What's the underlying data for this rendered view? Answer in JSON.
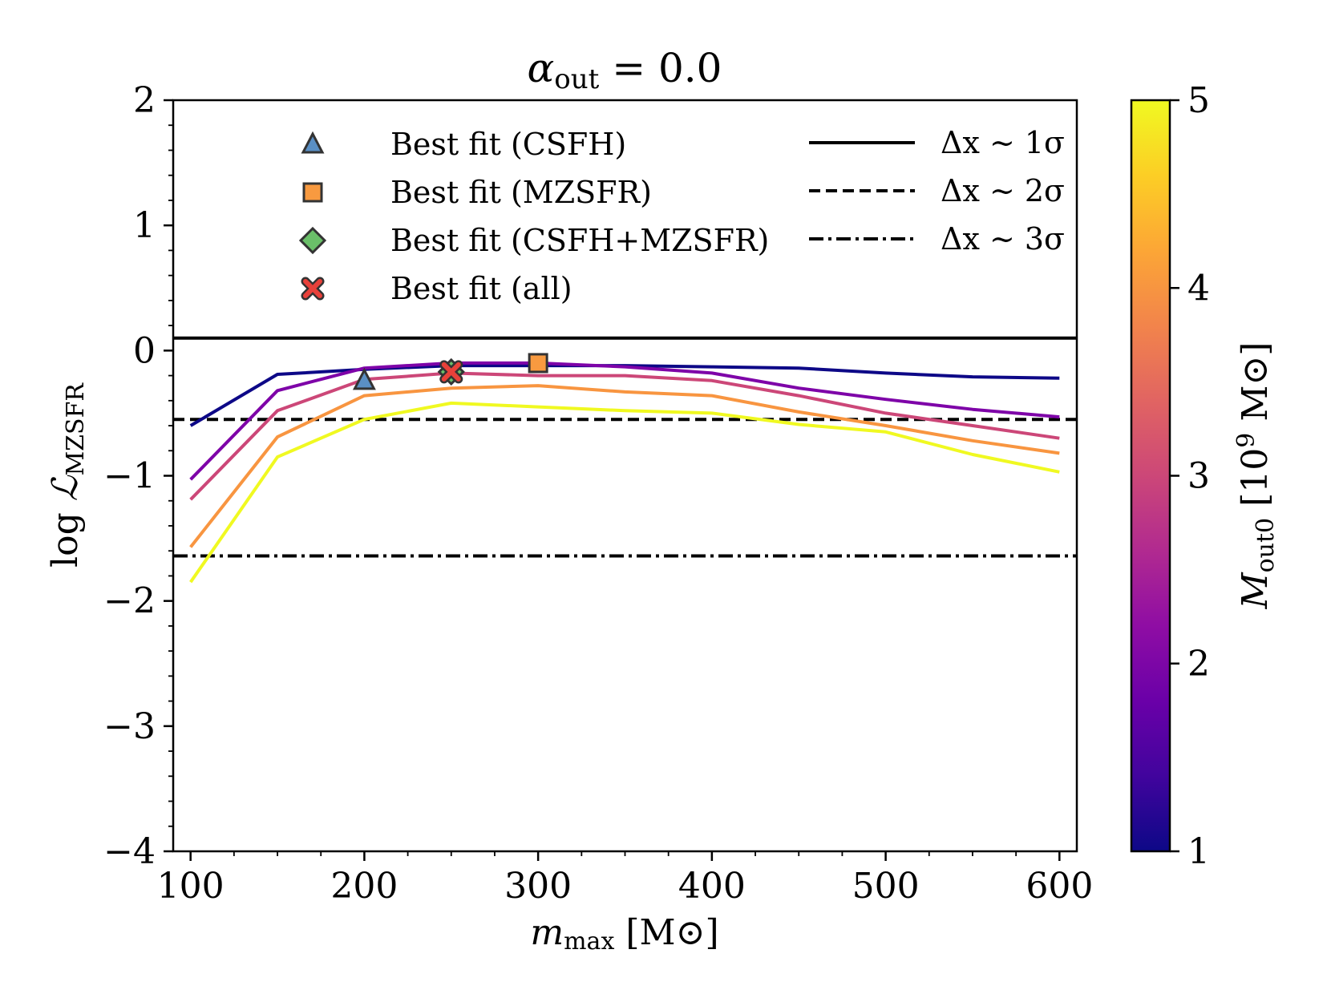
{
  "chart_data": {
    "type": "line",
    "title": "α_out = 0.0",
    "title_parts": {
      "symbol": "α",
      "sub": "out",
      "rest": " = 0.0"
    },
    "xlabel": "m_max [M⊙]",
    "xlabel_parts": {
      "symbol": "m",
      "sub": "max",
      "unit": " [M⊙]"
    },
    "ylabel": "log ℒ_MZSFR",
    "ylabel_parts": {
      "prefix": "log ",
      "symbol": "ℒ",
      "sub": "MZSFR"
    },
    "xlim": [
      90,
      610
    ],
    "ylim": [
      -4,
      2
    ],
    "xticks": [
      100,
      200,
      300,
      400,
      500,
      600
    ],
    "xtick_labels": [
      "100",
      "200",
      "300",
      "400",
      "500",
      "600"
    ],
    "yticks": [
      -4,
      -3,
      -2,
      -1,
      0,
      1,
      2
    ],
    "ytick_labels": [
      "−4",
      "−3",
      "−2",
      "−1",
      "0",
      "1",
      "2"
    ],
    "x": [
      100,
      150,
      200,
      250,
      300,
      350,
      400,
      450,
      500,
      550,
      600
    ],
    "series": [
      {
        "name": "M_out0 = 1",
        "color": "#0d0887",
        "values": [
          -0.6,
          -0.19,
          -0.15,
          -0.12,
          -0.12,
          -0.12,
          -0.13,
          -0.14,
          -0.18,
          -0.21,
          -0.22
        ]
      },
      {
        "name": "M_out0 = 2",
        "color": "#7e03a8",
        "values": [
          -1.03,
          -0.32,
          -0.14,
          -0.1,
          -0.1,
          -0.13,
          -0.18,
          -0.3,
          -0.39,
          -0.47,
          -0.53
        ]
      },
      {
        "name": "M_out0 = 3",
        "color": "#cc4778",
        "values": [
          -1.19,
          -0.48,
          -0.23,
          -0.18,
          -0.2,
          -0.2,
          -0.24,
          -0.36,
          -0.5,
          -0.6,
          -0.7
        ]
      },
      {
        "name": "M_out0 = 4",
        "color": "#f89540",
        "values": [
          -1.57,
          -0.69,
          -0.36,
          -0.3,
          -0.28,
          -0.33,
          -0.36,
          -0.49,
          -0.6,
          -0.72,
          -0.82
        ]
      },
      {
        "name": "M_out0 = 5",
        "color": "#f0f921",
        "values": [
          -1.85,
          -0.85,
          -0.55,
          -0.42,
          -0.45,
          -0.48,
          -0.5,
          -0.59,
          -0.65,
          -0.83,
          -0.97
        ]
      }
    ],
    "hlines": [
      {
        "name": "Δx ~ 1σ",
        "y": 0.1,
        "style": "solid"
      },
      {
        "name": "Δx ~ 2σ",
        "y": -0.55,
        "style": "dashed"
      },
      {
        "name": "Δx ~ 3σ",
        "y": -1.64,
        "style": "dashdot"
      }
    ],
    "markers": [
      {
        "name": "Best fit (CSFH)",
        "shape": "triangle",
        "x": 200,
        "y": -0.24,
        "color": "#5a8fc4"
      },
      {
        "name": "Best fit (MZSFR)",
        "shape": "square",
        "x": 300,
        "y": -0.1,
        "color": "#f89a40"
      },
      {
        "name": "Best fit (CSFH+MZSFR)",
        "shape": "diamond",
        "x": 250,
        "y": -0.17,
        "color": "#6abf69"
      },
      {
        "name": "Best fit (all)",
        "shape": "x",
        "x": 250,
        "y": -0.17,
        "color": "#e8413a"
      }
    ],
    "legend": {
      "markers": [
        {
          "label": "Best fit (CSFH)",
          "shape": "triangle",
          "color": "#5a8fc4"
        },
        {
          "label": "Best fit (MZSFR)",
          "shape": "square",
          "color": "#f89a40"
        },
        {
          "label": "Best fit (CSFH+MZSFR)",
          "shape": "diamond",
          "color": "#6abf69"
        },
        {
          "label": "Best fit (all)",
          "shape": "x",
          "color": "#e8413a"
        }
      ],
      "lines": [
        {
          "label": "Δx ∼ 1σ",
          "style": "solid"
        },
        {
          "label": "Δx ∼ 2σ",
          "style": "dashed"
        },
        {
          "label": "Δx ∼ 3σ",
          "style": "dashdot"
        }
      ],
      "placement": "top"
    },
    "colorbar": {
      "label": "M_out0 [10^9 M⊙]",
      "label_parts": {
        "symbol": "M",
        "sub": "out0",
        "unit_pre": " [10",
        "sup": "9",
        "unit_post": " M⊙]"
      },
      "range": [
        1,
        5
      ],
      "ticks": [
        1,
        2,
        3,
        4,
        5
      ],
      "tick_labels": [
        "1",
        "2",
        "3",
        "4",
        "5"
      ],
      "colormap": "plasma",
      "colors": [
        "#0d0887",
        "#41049d",
        "#6a00a8",
        "#8f0da4",
        "#b12a90",
        "#cc4778",
        "#e16462",
        "#f2844b",
        "#fca636",
        "#fcce25",
        "#f0f921"
      ]
    }
  }
}
